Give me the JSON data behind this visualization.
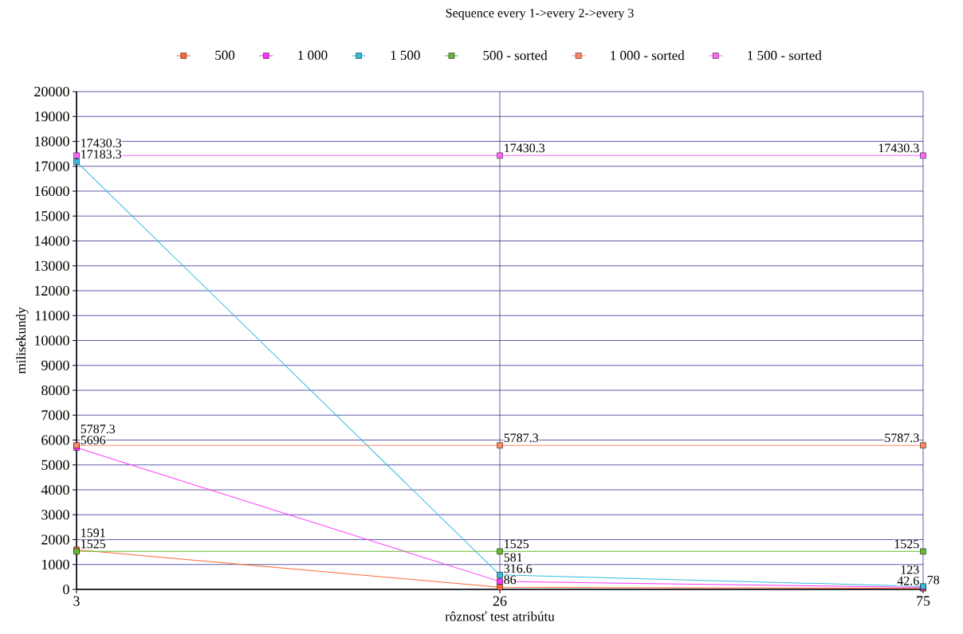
{
  "chart_data": {
    "type": "line",
    "title": "Sequence every 1->every 2->every 3",
    "xlabel": "rôznosť test atribútu",
    "ylabel": "milisekundy",
    "categories": [
      "3",
      "26",
      "75"
    ],
    "series": [
      {
        "name": "500",
        "color": "#ff6633",
        "values": [
          1591,
          86,
          42.6
        ]
      },
      {
        "name": "1 000",
        "color": "#ff33ff",
        "values": [
          5696,
          316.6,
          78
        ]
      },
      {
        "name": "1 500",
        "color": "#33bbdd",
        "values": [
          17183.3,
          581,
          123
        ]
      },
      {
        "name": "500 - sorted",
        "color": "#66bb33",
        "values": [
          1525,
          1525,
          1525
        ]
      },
      {
        "name": "1 000 - sorted",
        "color": "#ff8866",
        "values": [
          5787.3,
          5787.3,
          5787.3
        ]
      },
      {
        "name": "1 500 - sorted",
        "color": "#ff66ff",
        "values": [
          17430.3,
          17430.3,
          17430.3
        ]
      }
    ],
    "ylim": [
      0,
      20000
    ],
    "yticks": [
      0,
      1000,
      2000,
      3000,
      4000,
      5000,
      6000,
      7000,
      8000,
      9000,
      10000,
      11000,
      12000,
      13000,
      14000,
      15000,
      16000,
      17000,
      18000,
      19000,
      20000
    ],
    "grid": true,
    "legend": "top",
    "marker": "square",
    "line_style": "solid",
    "data_labels": true
  }
}
